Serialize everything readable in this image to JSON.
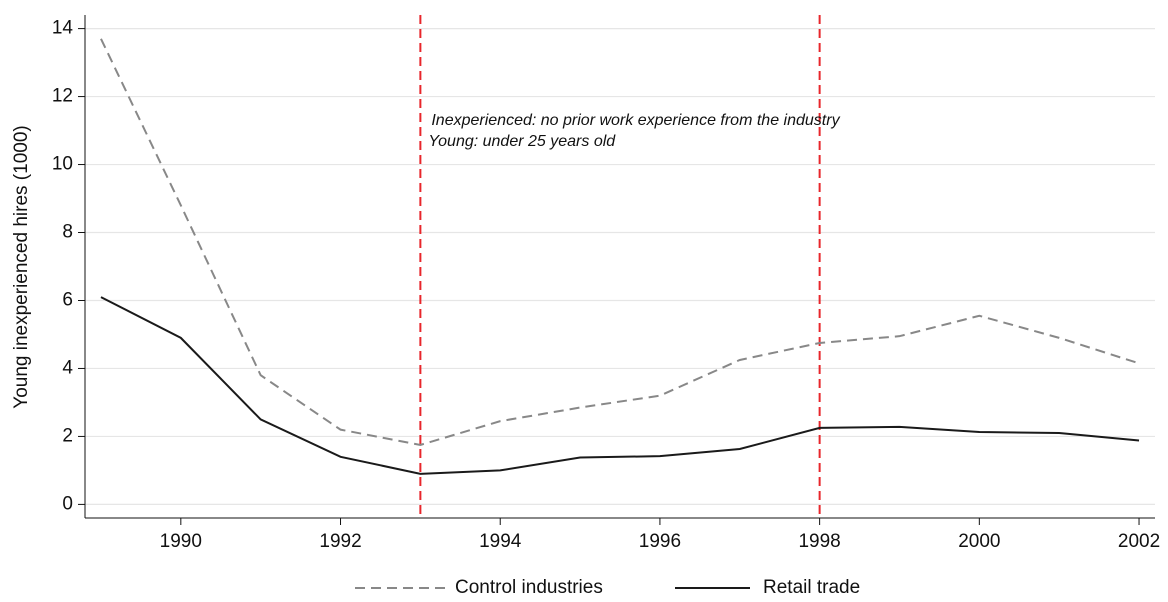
{
  "chart_data": {
    "type": "line",
    "y_label": "Young inexperienced hires (1000)",
    "x": [
      1989,
      1990,
      1991,
      1992,
      1993,
      1994,
      1995,
      1996,
      1997,
      1998,
      1999,
      2000,
      2001,
      2002
    ],
    "series": [
      {
        "name": "Control industries",
        "color": "#888888",
        "dashed": true,
        "values": [
          13.7,
          8.8,
          3.8,
          2.2,
          1.75,
          2.45,
          2.85,
          3.2,
          4.25,
          4.75,
          4.95,
          5.55,
          4.9,
          4.15
        ]
      },
      {
        "name": "Retail trade",
        "color": "#1a1a1a",
        "dashed": false,
        "values": [
          6.1,
          4.9,
          2.5,
          1.4,
          0.9,
          1.0,
          1.38,
          1.42,
          1.63,
          2.25,
          2.28,
          2.13,
          2.1,
          1.88
        ]
      }
    ],
    "xlim": [
      1988.8,
      2002.2
    ],
    "xticks": [
      1990,
      1992,
      1994,
      1996,
      1998,
      2000,
      2002
    ],
    "ylim": [
      -0.4,
      14.4
    ],
    "yticks": [
      0,
      2,
      4,
      6,
      8,
      10,
      12,
      14
    ],
    "grid": true,
    "vlines": [
      1993,
      1998
    ],
    "vline_color": "#e8262b",
    "annotations": [
      "Inexperienced: no prior work experience from the industry",
      "Young: under 25 years old"
    ]
  }
}
